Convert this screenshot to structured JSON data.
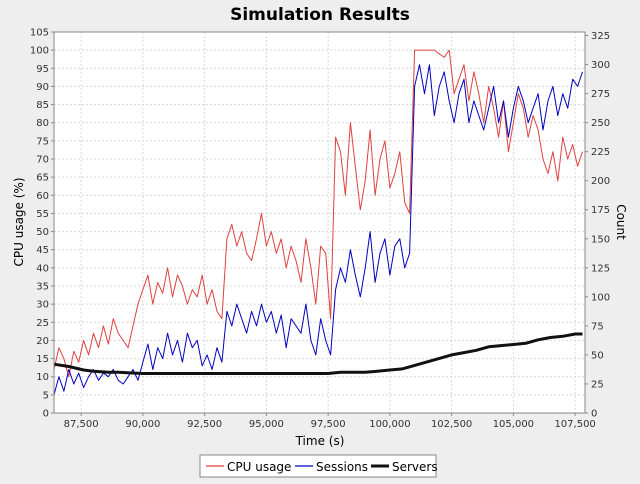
{
  "chart_data": {
    "type": "line",
    "title": "Simulation Results",
    "xlabel": "Time (s)",
    "ylabel_left": "CPU usage (%)",
    "ylabel_right": "Count",
    "xlim": [
      86400,
      107900
    ],
    "ylim_left": [
      0,
      105
    ],
    "ylim_right": [
      0,
      328
    ],
    "x_ticks": [
      {
        "value": 87500,
        "label": "87,500"
      },
      {
        "value": 90000,
        "label": "90,000"
      },
      {
        "value": 92500,
        "label": "92,500"
      },
      {
        "value": 95000,
        "label": "95,000"
      },
      {
        "value": 97500,
        "label": "97,500"
      },
      {
        "value": 100000,
        "label": "100,000"
      },
      {
        "value": 102500,
        "label": "102,500"
      },
      {
        "value": 105000,
        "label": "105,000"
      },
      {
        "value": 107500,
        "label": "107,500"
      }
    ],
    "y_left_ticks": [
      "0",
      "5",
      "10",
      "15",
      "20",
      "25",
      "30",
      "35",
      "40",
      "45",
      "50",
      "55",
      "60",
      "65",
      "70",
      "75",
      "80",
      "85",
      "90",
      "95",
      "100",
      "105"
    ],
    "y_right_ticks": [
      "0",
      "25",
      "50",
      "75",
      "100",
      "125",
      "150",
      "175",
      "200",
      "225",
      "250",
      "275",
      "300",
      "325"
    ],
    "grid": true,
    "legend_position": "bottom",
    "series": [
      {
        "name": "CPU usage",
        "axis": "left",
        "color": "#e04040",
        "x": [
          86400,
          86600,
          86800,
          87000,
          87200,
          87400,
          87600,
          87800,
          88000,
          88200,
          88400,
          88600,
          88800,
          89000,
          89200,
          89400,
          89600,
          89800,
          90000,
          90200,
          90400,
          90600,
          90800,
          91000,
          91200,
          91400,
          91600,
          91800,
          92000,
          92200,
          92400,
          92600,
          92800,
          93000,
          93200,
          93400,
          93600,
          93800,
          94000,
          94200,
          94400,
          94600,
          94800,
          95000,
          95200,
          95400,
          95600,
          95800,
          96000,
          96200,
          96400,
          96600,
          96800,
          97000,
          97200,
          97400,
          97600,
          97800,
          98000,
          98200,
          98400,
          98600,
          98800,
          99000,
          99200,
          99400,
          99600,
          99800,
          100000,
          100200,
          100400,
          100600,
          100800,
          101000,
          101200,
          101400,
          101600,
          101800,
          102000,
          102200,
          102400,
          102600,
          102800,
          103000,
          103200,
          103400,
          103600,
          103800,
          104000,
          104200,
          104400,
          104600,
          104800,
          105000,
          105200,
          105400,
          105600,
          105800,
          106000,
          106200,
          106400,
          106600,
          106800,
          107000,
          107200,
          107400,
          107600,
          107800
        ],
        "values": [
          12,
          18,
          15,
          10,
          17,
          14,
          20,
          16,
          22,
          18,
          24,
          19,
          26,
          22,
          20,
          18,
          24,
          30,
          34,
          38,
          30,
          36,
          33,
          40,
          32,
          38,
          35,
          30,
          34,
          32,
          38,
          30,
          34,
          28,
          26,
          48,
          52,
          46,
          50,
          44,
          42,
          48,
          55,
          46,
          50,
          44,
          48,
          40,
          46,
          42,
          36,
          48,
          40,
          30,
          46,
          44,
          26,
          76,
          72,
          60,
          80,
          68,
          56,
          64,
          78,
          60,
          70,
          75,
          62,
          66,
          72,
          58,
          55,
          100,
          100,
          100,
          100,
          100,
          99,
          98,
          100,
          88,
          92,
          96,
          86,
          94,
          88,
          80,
          90,
          84,
          76,
          86,
          72,
          80,
          88,
          84,
          76,
          82,
          78,
          70,
          66,
          72,
          64,
          76,
          70,
          74,
          68,
          72
        ]
      },
      {
        "name": "Sessions",
        "axis": "left",
        "color": "#0000c0",
        "x": [
          86400,
          86600,
          86800,
          87000,
          87200,
          87400,
          87600,
          87800,
          88000,
          88200,
          88400,
          88600,
          88800,
          89000,
          89200,
          89400,
          89600,
          89800,
          90000,
          90200,
          90400,
          90600,
          90800,
          91000,
          91200,
          91400,
          91600,
          91800,
          92000,
          92200,
          92400,
          92600,
          92800,
          93000,
          93200,
          93400,
          93600,
          93800,
          94000,
          94200,
          94400,
          94600,
          94800,
          95000,
          95200,
          95400,
          95600,
          95800,
          96000,
          96200,
          96400,
          96600,
          96800,
          97000,
          97200,
          97400,
          97600,
          97800,
          98000,
          98200,
          98400,
          98600,
          98800,
          99000,
          99200,
          99400,
          99600,
          99800,
          100000,
          100200,
          100400,
          100600,
          100800,
          101000,
          101200,
          101400,
          101600,
          101800,
          102000,
          102200,
          102400,
          102600,
          102800,
          103000,
          103200,
          103400,
          103600,
          103800,
          104000,
          104200,
          104400,
          104600,
          104800,
          105000,
          105200,
          105400,
          105600,
          105800,
          106000,
          106200,
          106400,
          106600,
          106800,
          107000,
          107200,
          107400,
          107600,
          107800
        ],
        "values": [
          5,
          10,
          6,
          12,
          8,
          11,
          7,
          10,
          12,
          9,
          11,
          10,
          12,
          9,
          8,
          10,
          12,
          9,
          14,
          19,
          12,
          18,
          15,
          22,
          16,
          20,
          14,
          22,
          18,
          20,
          13,
          16,
          12,
          18,
          14,
          28,
          24,
          30,
          26,
          22,
          28,
          24,
          30,
          25,
          28,
          22,
          27,
          18,
          26,
          24,
          22,
          30,
          20,
          16,
          26,
          20,
          16,
          34,
          40,
          36,
          45,
          38,
          32,
          40,
          50,
          36,
          44,
          48,
          38,
          46,
          48,
          40,
          44,
          90,
          96,
          88,
          96,
          82,
          90,
          94,
          86,
          80,
          88,
          92,
          80,
          86,
          82,
          78,
          84,
          90,
          80,
          86,
          76,
          84,
          90,
          86,
          80,
          84,
          88,
          78,
          86,
          90,
          82,
          88,
          84,
          92,
          90,
          94
        ]
      },
      {
        "name": "Servers",
        "axis": "right",
        "color": "#111111",
        "x": [
          86400,
          87000,
          87600,
          88000,
          88600,
          89000,
          90000,
          91000,
          92000,
          93000,
          94000,
          95000,
          96000,
          97000,
          97500,
          98000,
          98500,
          99000,
          99500,
          100000,
          100500,
          101000,
          101500,
          102000,
          102500,
          103000,
          103500,
          104000,
          104500,
          105000,
          105500,
          106000,
          106500,
          107000,
          107500,
          107800
        ],
        "values": [
          42,
          40,
          37,
          36,
          35,
          35,
          34,
          34,
          34,
          34,
          34,
          34,
          34,
          34,
          34,
          35,
          35,
          35,
          36,
          37,
          38,
          41,
          44,
          47,
          50,
          52,
          54,
          57,
          58,
          59,
          60,
          63,
          65,
          66,
          68,
          68
        ]
      }
    ]
  }
}
